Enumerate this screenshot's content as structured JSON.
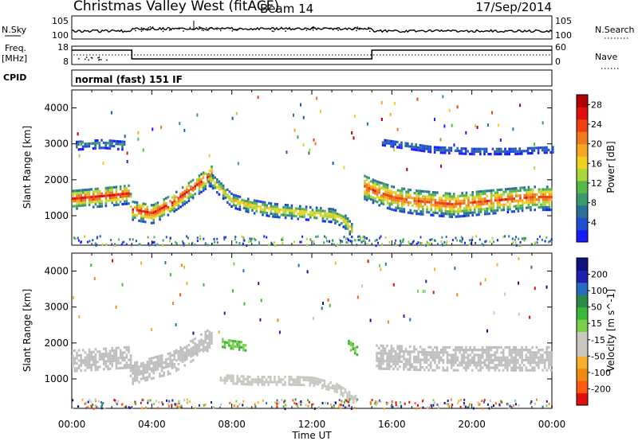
{
  "header": {
    "title": "Christmas Valley West (fitACF)",
    "beam": "Beam 14",
    "date": "17/Sep/2014"
  },
  "strip_labels": {
    "nsky": "N.Sky",
    "nsearch": "N.Search",
    "freq": "Freq.",
    "freq_unit": "[MHz]",
    "nave": "Nave",
    "cpid": "CPID",
    "cpid_value": "normal (fast) 151 IF"
  },
  "strip_ticks": {
    "noise_left": [
      "10^5",
      "10^0"
    ],
    "noise_right": [
      "10^5",
      "10^0"
    ],
    "freq_left": [
      "18",
      "8"
    ],
    "freq_right": [
      "60",
      "0"
    ]
  },
  "colors": {
    "power_scale": [
      "#1a1aff",
      "#1f4fd0",
      "#2e6f9a",
      "#3a9a6a",
      "#5ab84a",
      "#a8d83a",
      "#f0d020",
      "#f5a623",
      "#f07a1a",
      "#ee4010",
      "#e01010",
      "#b00000"
    ],
    "velocity_scale": [
      "#e01010",
      "#ff5a10",
      "#f08a10",
      "#f5b030",
      "#c8c8c0",
      "#c8c8c0",
      "#7ad04a",
      "#3ab83a",
      "#2a8a4a",
      "#2a6ac0",
      "#2020b0",
      "#101080"
    ],
    "ground_scatter": "#bfbfbf"
  },
  "chart_data": [
    {
      "type": "heatmap",
      "panel": "power",
      "ylabel": "Slant Range [km]",
      "yticks": [
        1000,
        2000,
        3000,
        4000
      ],
      "ylim": [
        180,
        4500
      ],
      "xlim_hours": [
        0,
        24
      ],
      "colorbar": {
        "label": "Power [dB]",
        "ticks": [
          4,
          8,
          12,
          16,
          20,
          24,
          28
        ],
        "range": [
          0,
          30
        ]
      },
      "bands": [
        {
          "name": "",
          "t": [
            0,
            1,
            2,
            2.8,
            3.0,
            4,
            5,
            6,
            7.0
          ],
          "range_km": [
            1500,
            1550,
            1600,
            1650,
            1200,
            1100,
            1400,
            1800,
            2200
          ],
          "width_km": 550,
          "peak_db": 26
        },
        {
          "name": "",
          "t": [
            6.8,
            8,
            9,
            10,
            11,
            12,
            13,
            13.6,
            14.0
          ],
          "range_km": [
            2100,
            1450,
            1300,
            1200,
            1150,
            1100,
            1050,
            900,
            600
          ],
          "width_km": 380,
          "peak_db": 18
        },
        {
          "name": "",
          "t": [
            14.6,
            15.2,
            16,
            17,
            18,
            19,
            20,
            21,
            22,
            23,
            24
          ],
          "range_km": [
            1850,
            1700,
            1550,
            1450,
            1400,
            1350,
            1400,
            1450,
            1500,
            1550,
            1550
          ],
          "width_km": 700,
          "peak_db": 24
        },
        {
          "name": "",
          "t": [
            0.2,
            1.5,
            2.6
          ],
          "range_km": [
            3000,
            3050,
            3000
          ],
          "width_km": 250,
          "peak_db": 8
        },
        {
          "name": "",
          "t": [
            15.5,
            18,
            20,
            22,
            24
          ],
          "range_km": [
            3100,
            2900,
            2850,
            2850,
            2900
          ],
          "width_km": 200,
          "peak_db": 6
        }
      ]
    },
    {
      "type": "heatmap",
      "panel": "velocity",
      "ylabel": "Slant Range [km]",
      "yticks": [
        1000,
        2000,
        3000,
        4000
      ],
      "ylim": [
        180,
        4500
      ],
      "xlim_hours": [
        0,
        24
      ],
      "colorbar": {
        "label": "Velocity [m s^-1]",
        "ticks": [
          200,
          100,
          50,
          15,
          -15,
          -50,
          -100,
          -200
        ],
        "range": [
          -250,
          250
        ]
      },
      "bands": [
        {
          "name": "",
          "t": [
            0,
            2.8,
            3.0,
            5,
            7.0
          ],
          "range_km": [
            1550,
            1650,
            1200,
            1500,
            2200
          ],
          "width_km": 600,
          "vel": 0
        },
        {
          "name": "",
          "t": [
            7.5,
            8.0,
            8.7
          ],
          "range_km": [
            2050,
            2000,
            1950
          ],
          "width_km": 250,
          "vel": 40
        },
        {
          "name": "",
          "t": [
            7.4,
            9,
            11,
            12,
            13.2,
            14.2
          ],
          "range_km": [
            1050,
            1000,
            1000,
            980,
            800,
            450
          ],
          "width_km": 250,
          "vel": -40
        },
        {
          "name": "",
          "t": [
            13.8,
            14.3
          ],
          "range_km": [
            2000,
            1800
          ],
          "width_km": 250,
          "vel": 50
        },
        {
          "name": "",
          "t": [
            15.2,
            18,
            21,
            24
          ],
          "range_km": [
            1650,
            1600,
            1600,
            1600
          ],
          "width_km": 650,
          "vel": 0
        }
      ]
    }
  ],
  "time_axis": {
    "label": "Time UT",
    "ticks": [
      "00:00",
      "04:00",
      "08:00",
      "12:00",
      "16:00",
      "20:00",
      "00:00"
    ]
  }
}
